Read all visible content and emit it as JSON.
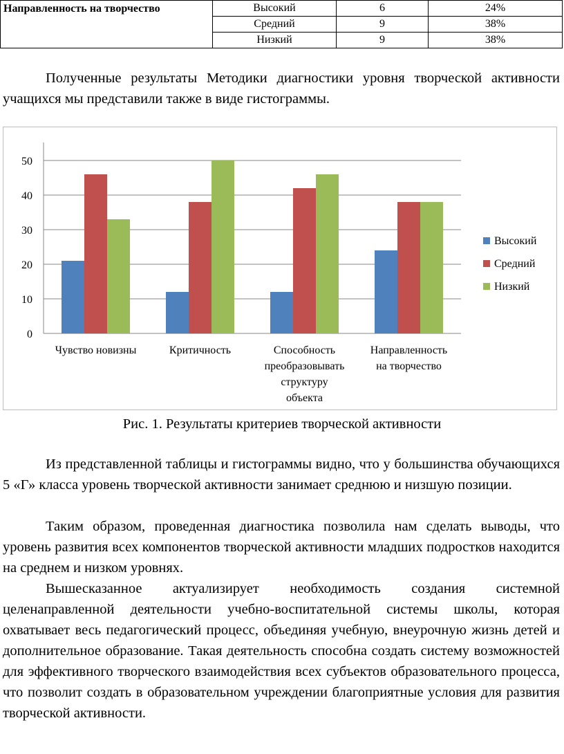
{
  "table": {
    "criterion": "Направленность на творчество",
    "rows": [
      {
        "level": "Высокий",
        "count": "6",
        "percent": "24%"
      },
      {
        "level": "Средний",
        "count": "9",
        "percent": "38%"
      },
      {
        "level": "Низкий",
        "count": "9",
        "percent": "38%"
      }
    ]
  },
  "text": {
    "intro": "Полученные результаты Методики диагностики уровня творческой активности учащихся мы представили также в виде гистограммы.",
    "caption": "Рис. 1. Результаты критериев творческой активности",
    "p1": "Из представленной таблицы и гистограммы видно, что у большинства обучающихся 5 «Г» класса уровень творческой активности занимает среднюю и низшую позиции.",
    "p2": "Таким образом, проведенная диагностика позволила нам сделать выводы, что уровень развития всех компонентов творческой активности младших подростков находится на среднем и низком уровнях.",
    "p3": "Вышесказанное актуализирует необходимость создания системной целенаправленной деятельности учебно-воспитательной системы школы, которая охватывает весь педагогический процесс, объединяя учебную, внеурочную жизнь детей и дополнительное образование. Такая деятельность способна создать систему возможностей для эффективного творческого взаимодействия всех субъектов образовательного процесса, что позволит создать в образовательном учреждении благоприятные условия для развития творческой активности."
  },
  "chart_data": {
    "type": "bar",
    "categories": [
      [
        "Чувство новизны"
      ],
      [
        "Критичность"
      ],
      [
        "Способность",
        "преобразовывать",
        "структуру",
        "объекта"
      ],
      [
        "Направленность",
        "на творчество"
      ]
    ],
    "series": [
      {
        "name": "Высокий",
        "color": "#4f81bd",
        "values": [
          21,
          12,
          12,
          24
        ]
      },
      {
        "name": "Средний",
        "color": "#c0504d",
        "values": [
          46,
          38,
          42,
          38
        ]
      },
      {
        "name": "Низкий",
        "color": "#9bbb59",
        "values": [
          33,
          50,
          46,
          38
        ]
      }
    ],
    "yticks": [
      "0",
      "10",
      "20",
      "30",
      "40",
      "50"
    ],
    "ylim": [
      0,
      50
    ],
    "grid": true,
    "legend": "right"
  }
}
